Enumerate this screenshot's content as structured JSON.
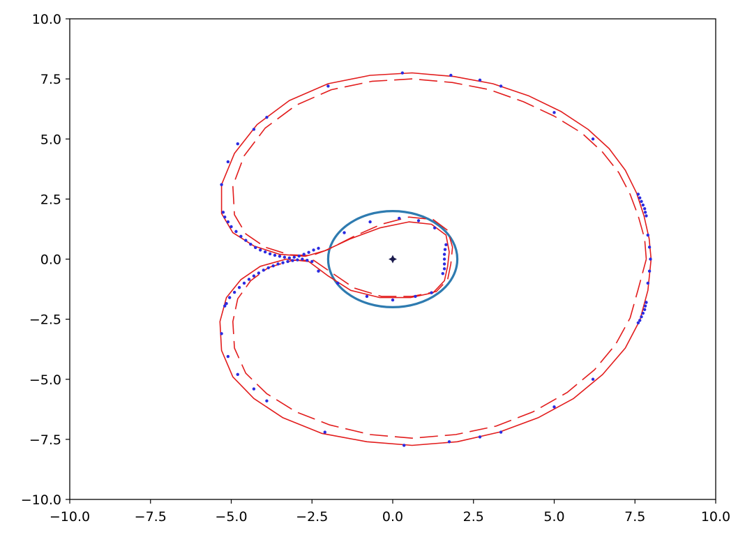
{
  "chart_data": {
    "type": "scatter",
    "title": "",
    "xlabel": "",
    "ylabel": "",
    "xlim": [
      -10,
      10
    ],
    "ylim": [
      -10,
      10
    ],
    "grid": false,
    "legend": "none",
    "x_ticks": [
      "−10.0",
      "−7.5",
      "−5.0",
      "−2.5",
      "0.0",
      "2.5",
      "5.0",
      "7.5",
      "10.0"
    ],
    "y_ticks": [
      "10.0",
      "7.5",
      "5.0",
      "2.5",
      "0.0",
      "−2.5",
      "−5.0",
      "−7.5",
      "−10.0"
    ],
    "x_tick_values": [
      -10,
      -7.5,
      -5,
      -2.5,
      0,
      2.5,
      5,
      7.5,
      10
    ],
    "y_tick_values": [
      10,
      7.5,
      5,
      2.5,
      0,
      -2.5,
      -5,
      -7.5,
      -10
    ],
    "series": [
      {
        "kind": "circle",
        "center": [
          0,
          0
        ],
        "radius_x": 2.0,
        "radius_y": 2.0,
        "color": "#2e7bb0"
      },
      {
        "kind": "point",
        "x": 0,
        "y": 0,
        "color": "#1a1a4d"
      },
      {
        "kind": "curve",
        "style": "solid",
        "color": "#e21c1c",
        "points": [
          [
            8.0,
            0
          ],
          [
            7.94,
            0.85
          ],
          [
            7.78,
            1.8
          ],
          [
            7.55,
            2.75
          ],
          [
            7.2,
            3.7
          ],
          [
            6.7,
            4.6
          ],
          [
            6.05,
            5.4
          ],
          [
            5.2,
            6.15
          ],
          [
            4.2,
            6.8
          ],
          [
            3.1,
            7.3
          ],
          [
            1.9,
            7.6
          ],
          [
            0.6,
            7.75
          ],
          [
            -0.7,
            7.65
          ],
          [
            -2.0,
            7.3
          ],
          [
            -3.2,
            6.6
          ],
          [
            -4.2,
            5.6
          ],
          [
            -4.9,
            4.4
          ],
          [
            -5.3,
            3.1
          ],
          [
            -5.3,
            1.9
          ],
          [
            -4.95,
            1.1
          ],
          [
            -4.3,
            0.55
          ],
          [
            -3.5,
            0.2
          ],
          [
            -2.7,
            0.12
          ],
          [
            -2.1,
            0.35
          ],
          [
            -1.3,
            0.85
          ],
          [
            -0.4,
            1.3
          ],
          [
            0.5,
            1.55
          ],
          [
            1.2,
            1.45
          ],
          [
            1.65,
            1.0
          ],
          [
            1.75,
            0.3
          ],
          [
            1.7,
            -0.3
          ],
          [
            1.6,
            -0.9
          ],
          [
            1.25,
            -1.4
          ],
          [
            0.55,
            -1.6
          ],
          [
            -0.4,
            -1.6
          ],
          [
            -1.3,
            -1.3
          ],
          [
            -2.0,
            -0.7
          ],
          [
            -2.6,
            -0.1
          ],
          [
            -3.3,
            0.0
          ],
          [
            -4.1,
            -0.3
          ],
          [
            -4.7,
            -0.85
          ],
          [
            -5.15,
            -1.6
          ],
          [
            -5.35,
            -2.6
          ],
          [
            -5.3,
            -3.8
          ],
          [
            -4.95,
            -4.9
          ],
          [
            -4.3,
            -5.8
          ],
          [
            -3.4,
            -6.6
          ],
          [
            -2.2,
            -7.25
          ],
          [
            -0.8,
            -7.6
          ],
          [
            0.6,
            -7.75
          ],
          [
            2.0,
            -7.6
          ],
          [
            3.3,
            -7.2
          ],
          [
            4.5,
            -6.6
          ],
          [
            5.6,
            -5.8
          ],
          [
            6.5,
            -4.8
          ],
          [
            7.2,
            -3.7
          ],
          [
            7.65,
            -2.55
          ],
          [
            7.9,
            -1.3
          ],
          [
            8.0,
            0
          ]
        ]
      },
      {
        "kind": "curve",
        "style": "dashed",
        "color": "#e21c1c",
        "points": [
          [
            7.85,
            0
          ],
          [
            7.8,
            0.85
          ],
          [
            7.6,
            1.8
          ],
          [
            7.35,
            2.7
          ],
          [
            7.0,
            3.6
          ],
          [
            6.5,
            4.45
          ],
          [
            5.85,
            5.25
          ],
          [
            5.0,
            5.95
          ],
          [
            4.05,
            6.55
          ],
          [
            3.0,
            7.05
          ],
          [
            1.85,
            7.35
          ],
          [
            0.6,
            7.5
          ],
          [
            -0.65,
            7.4
          ],
          [
            -1.9,
            7.05
          ],
          [
            -3.0,
            6.4
          ],
          [
            -3.95,
            5.45
          ],
          [
            -4.6,
            4.3
          ],
          [
            -4.95,
            3.05
          ],
          [
            -4.9,
            1.85
          ],
          [
            -4.55,
            1.05
          ],
          [
            -3.95,
            0.5
          ],
          [
            -3.2,
            0.18
          ],
          [
            -2.5,
            0.15
          ],
          [
            -2.0,
            0.4
          ],
          [
            -1.2,
            0.95
          ],
          [
            -0.35,
            1.45
          ],
          [
            0.5,
            1.75
          ],
          [
            1.25,
            1.65
          ],
          [
            1.7,
            1.2
          ],
          [
            1.85,
            0.5
          ],
          [
            1.8,
            -0.2
          ],
          [
            1.7,
            -0.85
          ],
          [
            1.35,
            -1.35
          ],
          [
            0.6,
            -1.55
          ],
          [
            -0.35,
            -1.55
          ],
          [
            -1.2,
            -1.2
          ],
          [
            -1.85,
            -0.6
          ],
          [
            -2.45,
            -0.05
          ],
          [
            -3.1,
            -0.05
          ],
          [
            -3.85,
            -0.35
          ],
          [
            -4.4,
            -0.9
          ],
          [
            -4.8,
            -1.65
          ],
          [
            -4.95,
            -2.6
          ],
          [
            -4.9,
            -3.7
          ],
          [
            -4.55,
            -4.75
          ],
          [
            -3.9,
            -5.6
          ],
          [
            -3.0,
            -6.35
          ],
          [
            -1.95,
            -6.9
          ],
          [
            -0.7,
            -7.3
          ],
          [
            0.6,
            -7.45
          ],
          [
            1.95,
            -7.3
          ],
          [
            3.2,
            -6.95
          ],
          [
            4.35,
            -6.35
          ],
          [
            5.4,
            -5.55
          ],
          [
            6.25,
            -4.6
          ],
          [
            6.9,
            -3.55
          ],
          [
            7.35,
            -2.45
          ],
          [
            7.6,
            -1.25
          ],
          [
            7.85,
            0
          ]
        ]
      },
      {
        "kind": "points",
        "color": "#2b2be0",
        "points": [
          [
            -2.0,
            7.2
          ],
          [
            0.3,
            7.75
          ],
          [
            1.8,
            7.65
          ],
          [
            2.7,
            7.45
          ],
          [
            3.35,
            7.2
          ],
          [
            5.0,
            6.1
          ],
          [
            6.2,
            5.0
          ],
          [
            -3.9,
            5.9
          ],
          [
            -4.3,
            5.4
          ],
          [
            -4.8,
            4.8
          ],
          [
            -5.1,
            4.05
          ],
          [
            -5.3,
            3.1
          ],
          [
            -5.25,
            1.95
          ],
          [
            -5.2,
            1.75
          ],
          [
            -5.1,
            1.55
          ],
          [
            -5.0,
            1.35
          ],
          [
            -4.85,
            1.15
          ],
          [
            -4.7,
            0.95
          ],
          [
            -4.55,
            0.78
          ],
          [
            -4.4,
            0.62
          ],
          [
            -4.25,
            0.48
          ],
          [
            -4.1,
            0.38
          ],
          [
            -3.95,
            0.3
          ],
          [
            -3.8,
            0.22
          ],
          [
            -3.65,
            0.16
          ],
          [
            -3.5,
            0.12
          ],
          [
            -3.35,
            0.08
          ],
          [
            -3.2,
            0.05
          ],
          [
            -3.05,
            0.08
          ],
          [
            -2.9,
            0.13
          ],
          [
            -2.75,
            0.2
          ],
          [
            -2.6,
            0.28
          ],
          [
            -2.45,
            0.38
          ],
          [
            -2.3,
            0.45
          ],
          [
            -1.5,
            1.1
          ],
          [
            -0.7,
            1.55
          ],
          [
            0.2,
            1.7
          ],
          [
            0.8,
            1.6
          ],
          [
            1.3,
            1.3
          ],
          [
            1.65,
            0.6
          ],
          [
            1.62,
            0.4
          ],
          [
            1.6,
            0.2
          ],
          [
            1.6,
            0.0
          ],
          [
            1.6,
            -0.2
          ],
          [
            1.6,
            -0.4
          ],
          [
            1.55,
            -0.6
          ],
          [
            1.2,
            -1.4
          ],
          [
            0.7,
            -1.55
          ],
          [
            0.0,
            -1.7
          ],
          [
            -0.8,
            -1.55
          ],
          [
            -1.7,
            -1.0
          ],
          [
            -2.3,
            -0.5
          ],
          [
            -2.5,
            -0.1
          ],
          [
            -2.65,
            -0.05
          ],
          [
            -2.8,
            0.0
          ],
          [
            -2.95,
            -0.03
          ],
          [
            -3.1,
            -0.06
          ],
          [
            -3.25,
            -0.1
          ],
          [
            -3.4,
            -0.15
          ],
          [
            -3.55,
            -0.2
          ],
          [
            -3.7,
            -0.28
          ],
          [
            -3.85,
            -0.36
          ],
          [
            -4.0,
            -0.46
          ],
          [
            -4.15,
            -0.58
          ],
          [
            -4.3,
            -0.7
          ],
          [
            -4.45,
            -0.84
          ],
          [
            -4.6,
            -1.0
          ],
          [
            -4.75,
            -1.18
          ],
          [
            -4.9,
            -1.38
          ],
          [
            -5.05,
            -1.6
          ],
          [
            -5.15,
            -1.85
          ],
          [
            -5.2,
            -1.95
          ],
          [
            -5.3,
            -3.1
          ],
          [
            -5.1,
            -4.05
          ],
          [
            -4.8,
            -4.8
          ],
          [
            -4.3,
            -5.4
          ],
          [
            -3.9,
            -5.9
          ],
          [
            -2.1,
            -7.2
          ],
          [
            0.35,
            -7.75
          ],
          [
            1.75,
            -7.6
          ],
          [
            2.7,
            -7.4
          ],
          [
            3.35,
            -7.2
          ],
          [
            5.0,
            -6.15
          ],
          [
            6.2,
            -5.0
          ],
          [
            7.6,
            2.7
          ],
          [
            7.65,
            2.55
          ],
          [
            7.7,
            2.4
          ],
          [
            7.75,
            2.25
          ],
          [
            7.8,
            2.1
          ],
          [
            7.82,
            1.95
          ],
          [
            7.85,
            1.8
          ],
          [
            7.9,
            1.0
          ],
          [
            7.95,
            0.5
          ],
          [
            7.98,
            0.0
          ],
          [
            7.95,
            -0.5
          ],
          [
            7.9,
            -1.0
          ],
          [
            7.85,
            -1.8
          ],
          [
            7.82,
            -1.95
          ],
          [
            7.8,
            -2.1
          ],
          [
            7.75,
            -2.25
          ],
          [
            7.7,
            -2.4
          ],
          [
            7.65,
            -2.55
          ],
          [
            7.6,
            -2.65
          ]
        ]
      }
    ]
  }
}
